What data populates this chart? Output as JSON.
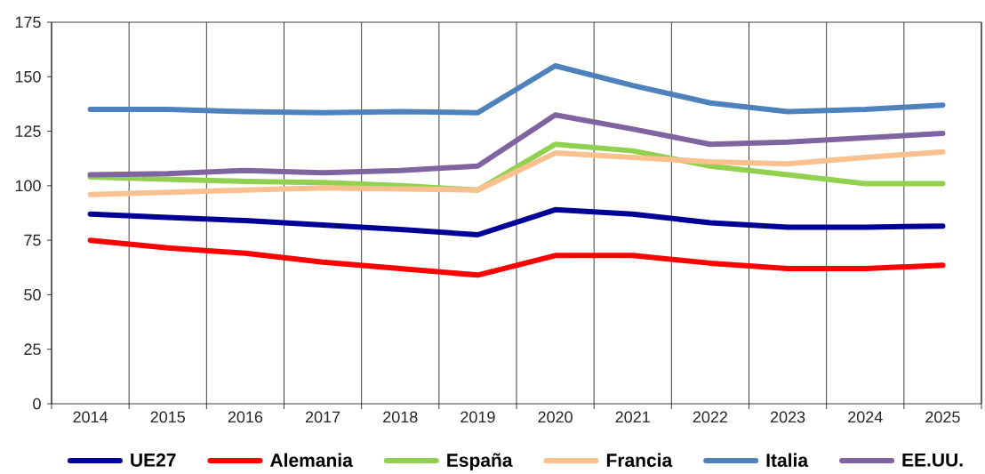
{
  "chart_data": {
    "type": "line",
    "categories": [
      "2014",
      "2015",
      "2016",
      "2017",
      "2018",
      "2019",
      "2020",
      "2021",
      "2022",
      "2023",
      "2024",
      "2025"
    ],
    "series": [
      {
        "name": "UE27",
        "color": "#000099",
        "values": [
          87,
          85.5,
          84,
          82,
          80,
          77.5,
          89,
          87,
          83,
          81,
          81,
          81.5
        ]
      },
      {
        "name": "Alemania",
        "color": "#ff0000",
        "values": [
          75,
          71.5,
          69,
          65,
          62,
          59,
          68,
          68,
          64.5,
          62,
          62,
          63.5
        ]
      },
      {
        "name": "España",
        "color": "#92d050",
        "values": [
          104,
          103,
          102,
          101.5,
          100,
          98,
          119,
          116,
          109,
          105,
          101,
          101
        ]
      },
      {
        "name": "Francia",
        "color": "#fac090",
        "values": [
          96,
          97,
          98,
          99,
          98.5,
          98,
          115,
          113,
          111,
          110,
          113,
          115.5
        ]
      },
      {
        "name": "Italia",
        "color": "#4f81bd",
        "values": [
          135,
          135,
          134,
          133.5,
          134,
          133.5,
          155,
          146,
          138,
          134,
          135,
          137
        ]
      },
      {
        "name": "EE.UU.",
        "color": "#8064a2",
        "values": [
          105,
          105.5,
          107,
          106,
          107,
          109,
          132.5,
          126,
          119,
          120,
          122,
          124
        ]
      }
    ],
    "ylim": [
      0,
      175
    ],
    "yticks": [
      0,
      25,
      50,
      75,
      100,
      125,
      150,
      175
    ],
    "grid": "x",
    "legend": "bottom",
    "marker": "none",
    "line_style": "solid"
  }
}
